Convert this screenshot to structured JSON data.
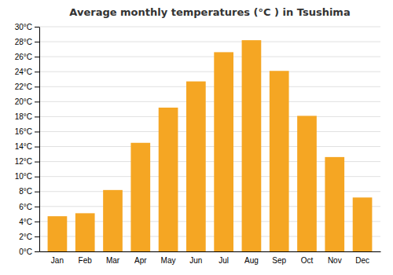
{
  "chart_data": {
    "type": "bar",
    "title": "Average monthly temperatures (°C ) in Tsushima",
    "categories": [
      "Jan",
      "Feb",
      "Mar",
      "Apr",
      "May",
      "Jun",
      "Jul",
      "Aug",
      "Sep",
      "Oct",
      "Nov",
      "Dec"
    ],
    "values": [
      4.7,
      5.1,
      8.2,
      14.5,
      19.2,
      22.7,
      26.6,
      28.2,
      24.1,
      18.1,
      12.6,
      7.2
    ],
    "color": "#F5A623",
    "ylim": [
      0,
      30
    ],
    "yticks": [
      {
        "value": 0,
        "label": "0°C"
      },
      {
        "value": 2,
        "label": "2°C"
      },
      {
        "value": 4,
        "label": "4°C"
      },
      {
        "value": 6,
        "label": "6°C"
      },
      {
        "value": 8,
        "label": "8°C"
      },
      {
        "value": 10,
        "label": "10°C"
      },
      {
        "value": 12,
        "label": "12°C"
      },
      {
        "value": 14,
        "label": "14°C"
      },
      {
        "value": 16,
        "label": "16°C"
      },
      {
        "value": 18,
        "label": "18°C"
      },
      {
        "value": 20,
        "label": "20°C"
      },
      {
        "value": 22,
        "label": "22°C"
      },
      {
        "value": 24,
        "label": "24°C"
      },
      {
        "value": 26,
        "label": "26°C"
      },
      {
        "value": 28,
        "label": "28°C"
      },
      {
        "value": 30,
        "label": "30°C"
      }
    ],
    "grid": true
  }
}
